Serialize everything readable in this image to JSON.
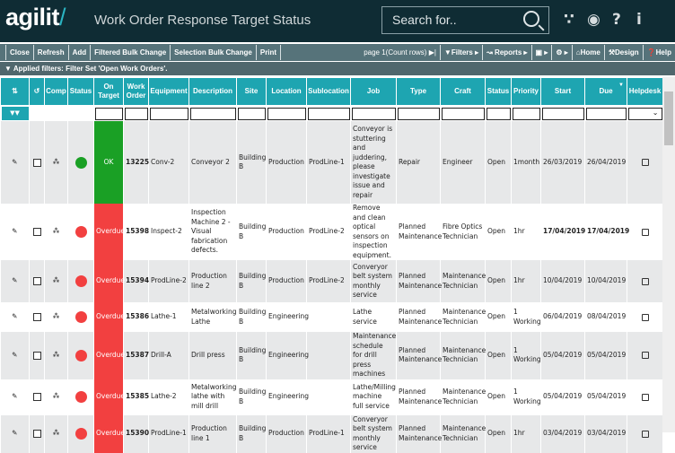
{
  "app": {
    "logo": "agilit",
    "logo_slash": "/",
    "title": "Work Order Response Target Status",
    "search_placeholder": "Search for.."
  },
  "toolbar": {
    "close": "Close",
    "refresh": "Refresh",
    "add": "Add",
    "filtered_bulk": "Filtered Bulk Change",
    "selection_bulk": "Selection Bulk Change",
    "print": "Print",
    "page": "page 1(Count rows)",
    "filters": "Filters",
    "reports": "Reports",
    "home": "Home",
    "design": "Design",
    "help": "Help"
  },
  "filter_text": "Applied filters: Filter Set 'Open Work Orders'.",
  "columns": [
    "",
    "",
    "Comp",
    "Status",
    "On Target",
    "Work Order",
    "Equipment",
    "Description",
    "Site",
    "Location",
    "Sublocation",
    "Job",
    "Type",
    "Craft",
    "Status",
    "Priority",
    "Start",
    "Due",
    "Helpdesk"
  ],
  "colors": {
    "ok": "#1aa025",
    "overdue": "#f24040",
    "header": "#1ea5b1"
  },
  "rows": [
    {
      "status": "green",
      "on_target": "OK",
      "wo": "13225",
      "equipment": "Conv-2",
      "description": "Conveyor 2",
      "site": "Building B",
      "location": "Production",
      "sublocation": "ProdLine-1",
      "job": "Conveyor is stuttering and juddering, please investigate issue and repair",
      "type": "Repair",
      "craft": "Engineer",
      "wo_status": "Open",
      "priority": "1month",
      "start": "26/03/2019",
      "due": "26/04/2019"
    },
    {
      "status": "red",
      "on_target": "Overdue",
      "wo": "15398",
      "equipment": "Inspect-2",
      "description": "Inspection Machine 2 - Visual fabrication defects.",
      "site": "Building B",
      "location": "Production",
      "sublocation": "ProdLine-2",
      "job": "Remove and clean optical sensors on inspection equipment.",
      "type": "Planned Maintenance",
      "craft": "Fibre Optics Technician",
      "wo_status": "Open",
      "priority": "1hr",
      "start": "17/04/2019",
      "due": "17/04/2019"
    },
    {
      "status": "red",
      "on_target": "Overdue",
      "wo": "15394",
      "equipment": "ProdLine-2",
      "description": "Production line 2",
      "site": "Building B",
      "location": "Production",
      "sublocation": "ProdLine-2",
      "job": "Converyor belt system monthly service",
      "type": "Planned Maintenance",
      "craft": "Maintenance Technician",
      "wo_status": "Open",
      "priority": "1hr",
      "start": "10/04/2019",
      "due": "10/04/2019"
    },
    {
      "status": "red",
      "on_target": "Overdue",
      "wo": "15386",
      "equipment": "Lathe-1",
      "description": "Metalworking Lathe",
      "site": "Building B",
      "location": "Engineering",
      "sublocation": "",
      "job": "Lathe service",
      "type": "Planned Maintenance",
      "craft": "Maintenance Technician",
      "wo_status": "Open",
      "priority": "1 Working",
      "start": "06/04/2019",
      "due": "08/04/2019"
    },
    {
      "status": "red",
      "on_target": "Overdue",
      "wo": "15387",
      "equipment": "Drill-A",
      "description": "Drill press",
      "site": "Building B",
      "location": "Engineering",
      "sublocation": "",
      "job": "Maintenance schedule for drill press machines",
      "type": "Planned Maintenance",
      "craft": "Maintenance Technician",
      "wo_status": "Open",
      "priority": "1 Working",
      "start": "05/04/2019",
      "due": "05/04/2019"
    },
    {
      "status": "red",
      "on_target": "Overdue",
      "wo": "15385",
      "equipment": "Lathe-2",
      "description": "Metalworking lathe with mill drill",
      "site": "Building B",
      "location": "Engineering",
      "sublocation": "",
      "job": "Lathe/Milling machine full service",
      "type": "Planned Maintenance",
      "craft": "Maintenance Technician",
      "wo_status": "Open",
      "priority": "1 Working",
      "start": "05/04/2019",
      "due": "05/04/2019"
    },
    {
      "status": "red",
      "on_target": "Overdue",
      "wo": "15390",
      "equipment": "ProdLine-1",
      "description": "Production line 1",
      "site": "Building B",
      "location": "Production",
      "sublocation": "ProdLine-1",
      "job": "Converyor belt system monthly service",
      "type": "Planned Maintenance",
      "craft": "Maintenance Technician",
      "wo_status": "Open",
      "priority": "1hr",
      "start": "03/04/2019",
      "due": "03/04/2019"
    }
  ]
}
